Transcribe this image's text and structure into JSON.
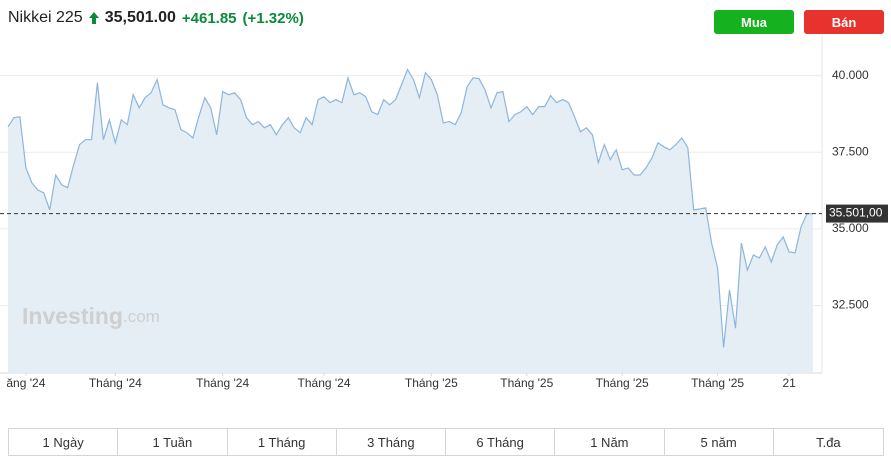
{
  "header": {
    "name": "Nikkei 225",
    "price": "35,501.00",
    "change": "+461.85",
    "change_pct": "(+1.32%)"
  },
  "buttons": {
    "buy": "Mua",
    "sell": "Bán"
  },
  "watermark": {
    "brand": "Investing",
    "suffix": ".com"
  },
  "tabs": [
    "1 Ngày",
    "1 Tuần",
    "1 Tháng",
    "3 Tháng",
    "6 Tháng",
    "1 Năm",
    "5 năm",
    "T.đa"
  ],
  "chart_data": {
    "type": "area",
    "color": "#8db6dc",
    "fill": "#e5edf5",
    "values": [
      38330,
      38630,
      38660,
      36990,
      36500,
      36270,
      36180,
      35620,
      36760,
      36440,
      36340,
      37090,
      37750,
      37910,
      37910,
      39770,
      37910,
      38560,
      37810,
      38560,
      38400,
      39380,
      38950,
      39280,
      39440,
      39870,
      39050,
      38950,
      38890,
      38240,
      38140,
      37970,
      38660,
      39280,
      38950,
      38070,
      39480,
      39380,
      39440,
      39220,
      38630,
      38400,
      38500,
      38300,
      38400,
      38070,
      38400,
      38630,
      38300,
      38140,
      38630,
      38400,
      39220,
      39310,
      39120,
      39220,
      39120,
      39930,
      39380,
      39440,
      39310,
      38820,
      38730,
      39220,
      39050,
      39220,
      39710,
      40200,
      39870,
      39280,
      40100,
      39870,
      39380,
      38460,
      38500,
      38400,
      38790,
      39640,
      39930,
      39900,
      39540,
      38950,
      39440,
      39480,
      38500,
      38730,
      38820,
      38990,
      38730,
      38990,
      38990,
      39350,
      39120,
      39220,
      39120,
      38660,
      38170,
      38300,
      38070,
      37160,
      37750,
      37260,
      37580,
      36930,
      36990,
      36760,
      36760,
      36990,
      37320,
      37810,
      37680,
      37580,
      37750,
      37970,
      37650,
      35620,
      35650,
      35690,
      34540,
      33730,
      31140,
      33010,
      31760,
      34540,
      33660,
      34150,
      34050,
      34410,
      33920,
      34480,
      34740,
      34250,
      34220,
      35070,
      35500,
      35501
    ],
    "xlim": [
      0,
      135
    ],
    "xticks": [
      {
        "value": 3,
        "label": "ăng '24"
      },
      {
        "value": 18,
        "label": "Tháng '24"
      },
      {
        "value": 36,
        "label": "Tháng '24"
      },
      {
        "value": 53,
        "label": "Tháng '24"
      },
      {
        "value": 71,
        "label": "Tháng '25"
      },
      {
        "value": 87,
        "label": "Tháng '25"
      },
      {
        "value": 103,
        "label": "Tháng '25"
      },
      {
        "value": 119,
        "label": "Tháng '25"
      },
      {
        "value": 131,
        "label": "21"
      }
    ],
    "ylim": [
      30300,
      41000
    ],
    "yticks": [
      {
        "value": 40000,
        "label": "40.000"
      },
      {
        "value": 37500,
        "label": "37.500"
      },
      {
        "value": 35000,
        "label": "35.000"
      },
      {
        "value": 32500,
        "label": "32.500"
      }
    ],
    "grid": true,
    "current": {
      "value": 35501,
      "label": "35.501,00"
    }
  }
}
